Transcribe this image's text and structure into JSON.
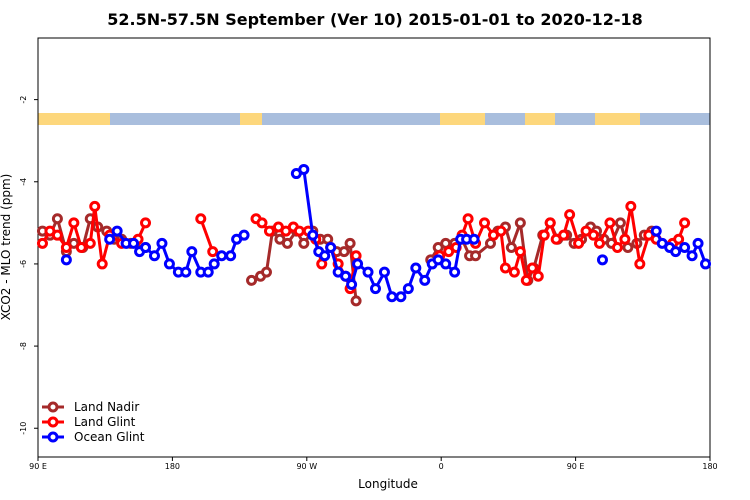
{
  "chart_data": {
    "type": "line",
    "title": "52.5N-57.5N September (Ver 10)   2015-01-01 to 2020-12-18",
    "xlabel": "Longitude",
    "ylabel": "XCO2 - MLO trend (ppm)",
    "xlim": [
      90,
      540
    ],
    "ylim": [
      -10.7,
      -0.5
    ],
    "xticks": [
      {
        "value": 90,
        "label": "90 E"
      },
      {
        "value": 180,
        "label": "180"
      },
      {
        "value": 270,
        "label": "90 W"
      },
      {
        "value": 360,
        "label": "0"
      },
      {
        "value": 450,
        "label": "90 E"
      },
      {
        "value": 540,
        "label": "180"
      }
    ],
    "yticks": [
      -2,
      -4,
      -6,
      -8,
      -10
    ],
    "legend": "lower left",
    "series": [
      {
        "name": "Land Nadir",
        "color": "#a52a2a",
        "x": [
          93,
          98,
          103,
          109,
          114,
          120,
          125,
          130,
          136,
          141,
          146,
          152,
          162,
          null,
          233,
          239,
          243,
          247,
          252,
          257,
          263,
          268,
          274,
          279,
          284,
          290,
          295,
          299,
          303,
          null,
          353,
          358,
          363,
          369,
          374,
          379,
          383,
          393,
          398,
          403,
          407,
          413,
          418,
          422,
          428,
          433,
          438,
          444,
          449,
          454,
          460,
          464,
          469,
          474,
          480,
          485,
          491,
          496,
          501
        ],
        "values": [
          -5.2,
          -5.3,
          -4.9,
          -5.7,
          -5.5,
          -5.6,
          -4.9,
          -5.1,
          -5.2,
          -5.4,
          -5.4,
          -5.5,
          -5.6,
          null,
          -6.4,
          -6.3,
          -6.2,
          -5.2,
          -5.4,
          -5.5,
          -5.2,
          -5.5,
          -5.2,
          -5.4,
          -5.4,
          -5.7,
          -5.7,
          -5.5,
          -6.9,
          null,
          -5.9,
          -5.6,
          -5.5,
          -5.5,
          -5.4,
          -5.8,
          -5.8,
          -5.5,
          -5.2,
          -5.1,
          -5.6,
          -5.0,
          -6.4,
          -6.1,
          -5.3,
          -5.0,
          -5.4,
          -5.3,
          -5.5,
          -5.4,
          -5.1,
          -5.2,
          -5.4,
          -5.5,
          -5.0,
          -5.6,
          -5.5,
          -5.3,
          -5.2
        ]
      },
      {
        "name": "Land Glint",
        "color": "#ff0000",
        "x": [
          93,
          98,
          103,
          109,
          114,
          119,
          125,
          128,
          133,
          138,
          146,
          157,
          162,
          null,
          199,
          207,
          null,
          236,
          240,
          245,
          251,
          256,
          261,
          265,
          271,
          276,
          280,
          286,
          291,
          296,
          299,
          303,
          null,
          359,
          365,
          370,
          374,
          378,
          383,
          389,
          395,
          400,
          403,
          409,
          413,
          417,
          421,
          425,
          429,
          433,
          437,
          442,
          446,
          452,
          457,
          462,
          466,
          473,
          478,
          483,
          487,
          493,
          499,
          504,
          null,
          515,
          519,
          523
        ],
        "values": [
          -5.5,
          -5.2,
          -5.3,
          -5.6,
          -5.0,
          -5.6,
          -5.5,
          -4.6,
          -6.0,
          -5.3,
          -5.5,
          -5.4,
          -5.0,
          null,
          -4.9,
          -5.7,
          null,
          -4.9,
          -5.0,
          -5.2,
          -5.1,
          -5.2,
          -5.1,
          -5.2,
          -5.2,
          -5.4,
          -6.0,
          -5.6,
          -6.0,
          -6.3,
          -6.6,
          -5.8,
          null,
          -5.8,
          -5.7,
          -5.6,
          -5.3,
          -4.9,
          -5.5,
          -5.0,
          -5.3,
          -5.2,
          -6.1,
          -6.2,
          -5.7,
          -6.4,
          -6.1,
          -6.3,
          -5.3,
          -5.0,
          -5.4,
          -5.3,
          -4.8,
          -5.5,
          -5.2,
          -5.3,
          -5.5,
          -5.0,
          -5.6,
          -5.4,
          -4.6,
          -6.0,
          -5.3,
          -5.4,
          null,
          -5.5,
          -5.4,
          -5.0
        ]
      },
      {
        "name": "Ocean Glint",
        "color": "#0000ff",
        "x": [
          109,
          null,
          138,
          143,
          149,
          154,
          158,
          162,
          168,
          173,
          178,
          184,
          189,
          193,
          199,
          204,
          208,
          213,
          219,
          223,
          228,
          null,
          263,
          268,
          274,
          278,
          282,
          286,
          291,
          296,
          300,
          304,
          311,
          316,
          322,
          327,
          333,
          338,
          343,
          349,
          354,
          358,
          363,
          369,
          373,
          377,
          382,
          null,
          468,
          null,
          504,
          508,
          513,
          517,
          523,
          528,
          532,
          537
        ],
        "values": [
          -5.9,
          null,
          -5.4,
          -5.2,
          -5.5,
          -5.5,
          -5.7,
          -5.6,
          -5.8,
          -5.5,
          -6.0,
          -6.2,
          -6.2,
          -5.7,
          -6.2,
          -6.2,
          -6.0,
          -5.8,
          -5.8,
          -5.4,
          -5.3,
          null,
          -3.8,
          -3.7,
          -5.3,
          -5.7,
          -5.8,
          -5.6,
          -6.2,
          -6.3,
          -6.5,
          -6.0,
          -6.2,
          -6.6,
          -6.2,
          -6.8,
          -6.8,
          -6.6,
          -6.1,
          -6.4,
          -6.0,
          -5.9,
          -6.0,
          -6.2,
          -5.4,
          -5.4,
          -5.4,
          null,
          -5.9,
          null,
          -5.2,
          -5.5,
          -5.6,
          -5.7,
          -5.6,
          -5.8,
          -5.5,
          -6.0
        ]
      }
    ]
  }
}
